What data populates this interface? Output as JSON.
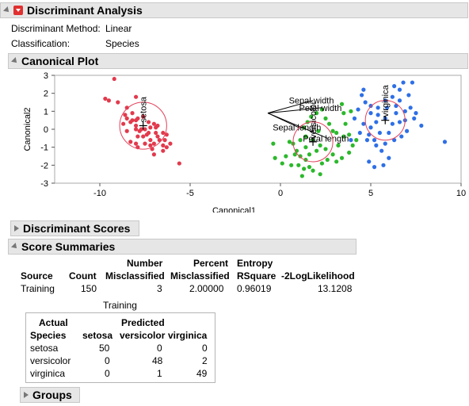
{
  "main": {
    "title": "Discriminant Analysis"
  },
  "info": {
    "method_label": "Discriminant Method:",
    "method_value": "Linear",
    "class_label": "Classification:",
    "class_value": "Species"
  },
  "sections": {
    "canonical_plot": "Canonical Plot",
    "discriminant_scores": "Discriminant Scores",
    "score_summaries": "Score Summaries",
    "groups": "Groups"
  },
  "chart_data": {
    "type": "scatter",
    "xlabel": "Canonical1",
    "ylabel": "Canonical2",
    "xlim": [
      -12.5,
      10
    ],
    "ylim": [
      -3,
      3
    ],
    "xticks": [
      -10,
      -5,
      0,
      5,
      10
    ],
    "yticks": [
      3,
      2,
      1,
      0,
      -1,
      -2,
      -3
    ],
    "grid": false,
    "series": [
      {
        "name": "setosa",
        "color": "#e23a4d",
        "points": [
          [
            -9.2,
            2.8
          ],
          [
            -9.0,
            1.5
          ],
          [
            -9.7,
            1.7
          ],
          [
            -9.5,
            1.6
          ],
          [
            -8.0,
            1.8
          ],
          [
            -8.5,
            1.2
          ],
          [
            -8.2,
            0.9
          ],
          [
            -8.6,
            0.8
          ],
          [
            -8.2,
            0.5
          ],
          [
            -7.9,
            0.6
          ],
          [
            -8.3,
            0.4
          ],
          [
            -8.0,
            0.2
          ],
          [
            -7.5,
            0.0
          ],
          [
            -8.0,
            0.0
          ],
          [
            -7.8,
            -0.1
          ],
          [
            -7.2,
            0.1
          ],
          [
            -7.0,
            0.3
          ],
          [
            -6.9,
            0.1
          ],
          [
            -7.3,
            -0.2
          ],
          [
            -7.6,
            -0.4
          ],
          [
            -7.2,
            -0.6
          ],
          [
            -7.0,
            -0.8
          ],
          [
            -6.8,
            -0.4
          ],
          [
            -6.5,
            -0.2
          ],
          [
            -6.7,
            -0.6
          ],
          [
            -6.5,
            -0.9
          ],
          [
            -6.3,
            -1.0
          ],
          [
            -7.1,
            -1.1
          ],
          [
            -7.5,
            -0.8
          ],
          [
            -8.0,
            -0.8
          ],
          [
            -8.3,
            -0.7
          ],
          [
            -7.9,
            -0.4
          ],
          [
            -7.4,
            -0.3
          ],
          [
            -7.3,
            0.4
          ],
          [
            -7.6,
            0.7
          ],
          [
            -8.5,
            0.6
          ],
          [
            -8.7,
            0.3
          ],
          [
            -7.9,
            -1.0
          ],
          [
            -7.0,
            -1.4
          ],
          [
            -6.5,
            -1.2
          ],
          [
            -6.4,
            -0.6
          ],
          [
            -6.3,
            -0.3
          ],
          [
            -6.8,
            0.2
          ],
          [
            -8.0,
            0.5
          ],
          [
            -8.5,
            -0.1
          ],
          [
            -7.7,
            0.0
          ],
          [
            -6.9,
            -0.2
          ],
          [
            -7.2,
            -0.9
          ],
          [
            -6.1,
            -0.8
          ],
          [
            -5.6,
            -1.9
          ]
        ]
      },
      {
        "name": "versicolor",
        "color": "#2cb82c",
        "points": [
          [
            -0.4,
            -0.8
          ],
          [
            -0.3,
            -1.6
          ],
          [
            0.1,
            -1.9
          ],
          [
            0.3,
            -1.5
          ],
          [
            0.5,
            -0.7
          ],
          [
            0.8,
            -1.4
          ],
          [
            1.0,
            -2.0
          ],
          [
            1.1,
            -1.5
          ],
          [
            1.3,
            -2.2
          ],
          [
            1.2,
            -2.6
          ],
          [
            0.9,
            -1.2
          ],
          [
            1.4,
            -1.7
          ],
          [
            1.6,
            -2.1
          ],
          [
            2.0,
            -1.2
          ],
          [
            2.3,
            -1.9
          ],
          [
            2.6,
            -1.7
          ],
          [
            2.9,
            -1.4
          ],
          [
            3.1,
            -1.8
          ],
          [
            3.4,
            -1.6
          ],
          [
            2.2,
            -0.9
          ],
          [
            1.8,
            -0.6
          ],
          [
            1.4,
            -0.4
          ],
          [
            1.1,
            -0.6
          ],
          [
            1.3,
            0.1
          ],
          [
            1.5,
            0.4
          ],
          [
            1.7,
            0.7
          ],
          [
            2.0,
            0.9
          ],
          [
            2.3,
            1.1
          ],
          [
            2.5,
            0.6
          ],
          [
            2.7,
            0.3
          ],
          [
            2.9,
            -0.1
          ],
          [
            3.1,
            -0.2
          ],
          [
            3.5,
            -0.4
          ],
          [
            3.8,
            -0.3
          ],
          [
            3.6,
            0.3
          ],
          [
            3.5,
            0.9
          ],
          [
            3.9,
            1.0
          ],
          [
            3.4,
            1.4
          ],
          [
            2.1,
            -0.1
          ],
          [
            1.4,
            -1.0
          ],
          [
            2.2,
            -2.5
          ],
          [
            3.8,
            -1.3
          ],
          [
            4.2,
            -0.6
          ],
          [
            4.0,
            -0.9
          ],
          [
            0.6,
            -2.0
          ],
          [
            1.8,
            -2.3
          ],
          [
            2.5,
            -1.1
          ],
          [
            0.7,
            -0.8
          ],
          [
            3.2,
            -0.9
          ],
          [
            1.6,
            -1.4
          ]
        ]
      },
      {
        "name": "virginica",
        "color": "#2e6fe6",
        "points": [
          [
            4.5,
            1.9
          ],
          [
            4.7,
            1.5
          ],
          [
            5.0,
            1.3
          ],
          [
            5.4,
            1.2
          ],
          [
            5.8,
            1.6
          ],
          [
            6.2,
            1.8
          ],
          [
            6.6,
            2.2
          ],
          [
            6.8,
            2.6
          ],
          [
            7.1,
            1.9
          ],
          [
            7.3,
            2.6
          ],
          [
            6.4,
            1.3
          ],
          [
            6.9,
            1.0
          ],
          [
            7.2,
            1.2
          ],
          [
            7.5,
            0.9
          ],
          [
            6.6,
            0.4
          ],
          [
            6.2,
            0.3
          ],
          [
            5.8,
            0.6
          ],
          [
            5.3,
            0.4
          ],
          [
            5.0,
            0.1
          ],
          [
            4.6,
            0.3
          ],
          [
            4.9,
            -0.3
          ],
          [
            5.2,
            -0.6
          ],
          [
            5.5,
            -0.2
          ],
          [
            6.0,
            -0.2
          ],
          [
            6.3,
            -0.6
          ],
          [
            6.7,
            -0.4
          ],
          [
            7.0,
            -0.1
          ],
          [
            6.9,
            0.5
          ],
          [
            7.4,
            0.6
          ],
          [
            4.3,
            1.1
          ],
          [
            4.4,
            -0.2
          ],
          [
            4.8,
            -0.6
          ],
          [
            5.3,
            -0.9
          ],
          [
            5.6,
            -1.2
          ],
          [
            5.8,
            -0.8
          ],
          [
            4.9,
            -1.8
          ],
          [
            5.2,
            -2.1
          ],
          [
            5.7,
            -2.0
          ],
          [
            9.1,
            -0.7
          ],
          [
            6.6,
            1.6
          ],
          [
            5.9,
            1.2
          ],
          [
            4.1,
            0.6
          ],
          [
            4.6,
            2.2
          ],
          [
            5.0,
            0.9
          ],
          [
            6.4,
            0.9
          ],
          [
            7.8,
            0.2
          ],
          [
            5.4,
            0.8
          ],
          [
            6.0,
            -1.6
          ],
          [
            3.9,
            -0.6
          ],
          [
            6.3,
            2.4
          ]
        ]
      }
    ],
    "centroids": [
      {
        "name": "setosa",
        "x": -7.6,
        "y": 0.2,
        "r": 1.3
      },
      {
        "name": "versicolor",
        "x": 1.8,
        "y": -0.7,
        "r": 1.1
      },
      {
        "name": "virginica",
        "x": 5.8,
        "y": 0.5,
        "r": 1.1
      }
    ],
    "biplot_origin": [
      -0.7,
      0.9
    ],
    "biplot_rays": [
      {
        "label": "Sepal width",
        "x": 1.8,
        "y": 1.6
      },
      {
        "label": "Petal width",
        "x": 2.3,
        "y": 1.2
      },
      {
        "label": "Sepal length",
        "x": 1.0,
        "y": 0.1
      },
      {
        "label": "Petal length",
        "x": 2.6,
        "y": -0.5
      }
    ]
  },
  "score_summaries": {
    "headers": {
      "source": "Source",
      "count": "Count",
      "nmis_1": "Number",
      "nmis_2": "Misclassified",
      "pmis_1": "Percent",
      "pmis_2": "Misclassified",
      "ent_1": "Entropy",
      "ent_2": "RSquare",
      "loglik": "-2LogLikelihood"
    },
    "row": {
      "source": "Training",
      "count": "150",
      "nmis": "3",
      "pmis": "2.00000",
      "ent": "0.96019",
      "loglik": "13.1208"
    }
  },
  "confusion": {
    "title": "Training",
    "actual_1": "Actual",
    "actual_2": "Species",
    "predicted": "Predicted",
    "cols": [
      "setosa",
      "versicolor",
      "virginica"
    ],
    "rows": [
      {
        "label": "setosa",
        "values": [
          "50",
          "0",
          "0"
        ]
      },
      {
        "label": "versicolor",
        "values": [
          "0",
          "48",
          "2"
        ]
      },
      {
        "label": "virginica",
        "values": [
          "0",
          "1",
          "49"
        ]
      }
    ]
  }
}
